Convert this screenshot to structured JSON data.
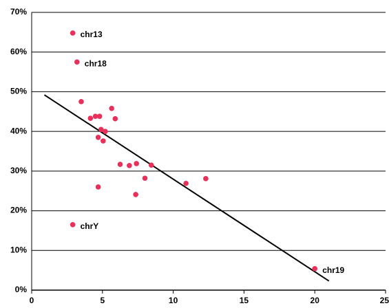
{
  "chart_data": {
    "type": "scatter",
    "x": [
      2.9,
      3.2,
      3.5,
      4.15,
      4.5,
      4.8,
      4.9,
      5.2,
      4.7,
      5.05,
      5.65,
      5.9,
      6.25,
      6.9,
      7.4,
      8.45,
      8.0,
      7.35,
      4.7,
      10.9,
      12.3,
      2.9,
      20.0
    ],
    "values": [
      64.8,
      57.5,
      47.5,
      43.3,
      43.8,
      43.8,
      40.5,
      40,
      38.5,
      37.6,
      45.8,
      43.2,
      31.7,
      31.4,
      31.9,
      31.5,
      28.2,
      24.1,
      26,
      26.9,
      28.1,
      16.5,
      5.4
    ],
    "labels": [
      "chr13",
      "chr18",
      null,
      null,
      null,
      null,
      null,
      null,
      null,
      null,
      null,
      null,
      null,
      null,
      null,
      null,
      null,
      null,
      null,
      null,
      null,
      "chrY",
      "chr19"
    ],
    "color": "#e8305a",
    "trendline": {
      "x": [
        0.9,
        21.0
      ],
      "values": [
        49.2,
        2.3
      ],
      "color": "#000000"
    },
    "xlim": [
      0,
      25
    ],
    "xticks": [
      0,
      5,
      10,
      15,
      20,
      25
    ],
    "ylim": [
      0,
      70
    ],
    "yticks": [
      {
        "value": 0,
        "label": "0%"
      },
      {
        "value": 10,
        "label": "10%"
      },
      {
        "value": 20,
        "label": "20%"
      },
      {
        "value": 30,
        "label": "30%"
      },
      {
        "value": 40,
        "label": "40%"
      },
      {
        "value": 50,
        "label": "50%"
      },
      {
        "value": 60,
        "label": "60%"
      },
      {
        "value": 70,
        "label": "70%"
      }
    ],
    "grid": true
  }
}
